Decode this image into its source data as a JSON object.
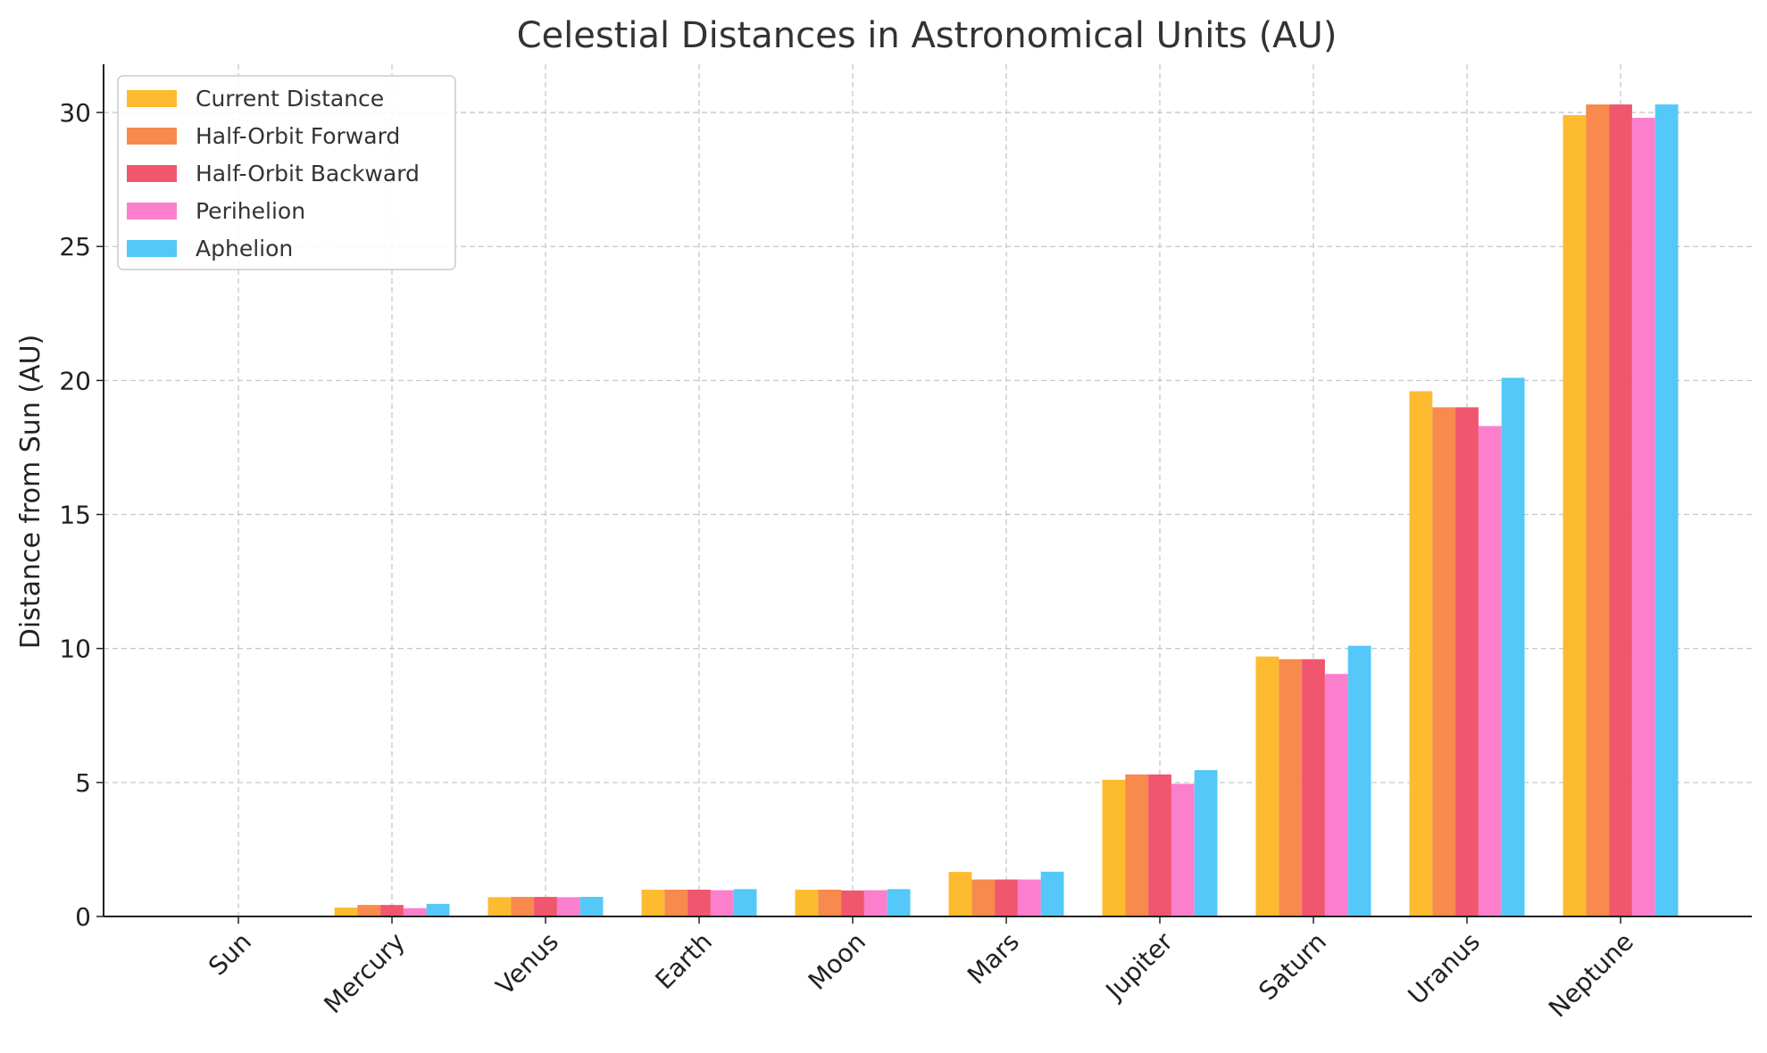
{
  "chart_data": {
    "type": "bar",
    "title": "Celestial Distances in Astronomical Units (AU)",
    "xlabel": "",
    "ylabel": "Distance from Sun (AU)",
    "ylim": [
      0,
      31.8
    ],
    "yticks": [
      0,
      5,
      10,
      15,
      20,
      25,
      30
    ],
    "grid": true,
    "legend_position": "top-left",
    "categories": [
      "Sun",
      "Mercury",
      "Venus",
      "Earth",
      "Moon",
      "Mars",
      "Jupiter",
      "Saturn",
      "Uranus",
      "Neptune"
    ],
    "series": [
      {
        "name": "Current Distance",
        "color": "#FDBB2F",
        "values": [
          0,
          0.33,
          0.72,
          1.0,
          1.0,
          1.66,
          5.1,
          9.7,
          19.6,
          29.9
        ]
      },
      {
        "name": "Half-Orbit Forward",
        "color": "#F78A4C",
        "values": [
          0,
          0.43,
          0.73,
          1.0,
          1.0,
          1.38,
          5.3,
          9.6,
          19.0,
          30.3
        ]
      },
      {
        "name": "Half-Orbit Backward",
        "color": "#F0566D",
        "values": [
          0,
          0.43,
          0.73,
          1.0,
          0.97,
          1.38,
          5.3,
          9.6,
          19.0,
          30.3
        ]
      },
      {
        "name": "Perihelion",
        "color": "#FB7FCD",
        "values": [
          0,
          0.31,
          0.72,
          0.98,
          0.98,
          1.38,
          4.95,
          9.05,
          18.3,
          29.8
        ]
      },
      {
        "name": "Aphelion",
        "color": "#54C8F8",
        "values": [
          0,
          0.47,
          0.73,
          1.02,
          1.02,
          1.67,
          5.46,
          10.1,
          20.1,
          30.3
        ]
      }
    ]
  }
}
